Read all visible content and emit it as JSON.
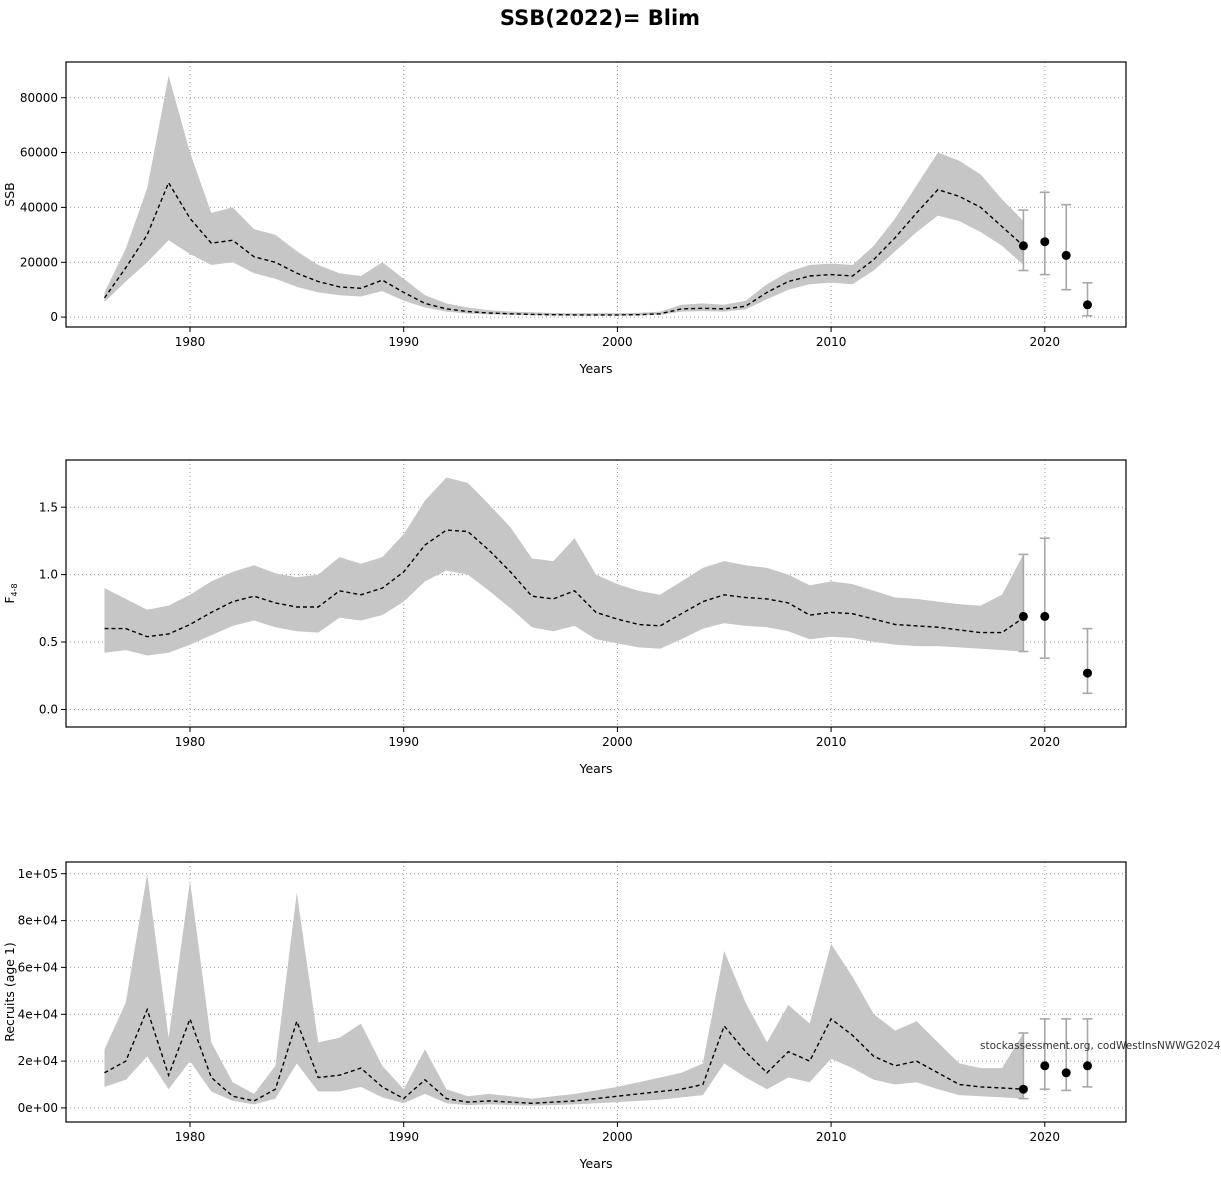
{
  "title": "SSB(2022)= Blim",
  "watermark": "stockassessment.org, codWestInsNWWG2024",
  "colors": {
    "band": "#c6c6c6",
    "line": "#000000",
    "grid": "#9a9a9a",
    "errorbar": "#a8a8a8",
    "point": "#000000"
  },
  "chart_data": [
    {
      "type": "line",
      "name": "ssb",
      "ylabel": "SSB",
      "xlabel": "Years",
      "xlim": [
        1974.2,
        2023.8
      ],
      "ylim": [
        -3600,
        93000
      ],
      "xticks": [
        1980,
        1990,
        2000,
        2010,
        2020
      ],
      "yticks": [
        0,
        20000,
        40000,
        60000,
        80000
      ],
      "ytick_labels": [
        "0",
        "20000",
        "40000",
        "60000",
        "80000"
      ],
      "x": [
        1976,
        1977,
        1978,
        1979,
        1980,
        1981,
        1982,
        1983,
        1984,
        1985,
        1986,
        1987,
        1988,
        1989,
        1990,
        1991,
        1992,
        1993,
        1994,
        1995,
        1996,
        1997,
        1998,
        1999,
        2000,
        2001,
        2002,
        2003,
        2004,
        2005,
        2006,
        2007,
        2008,
        2009,
        2010,
        2011,
        2012,
        2013,
        2014,
        2015,
        2016,
        2017,
        2018,
        2019
      ],
      "median": [
        7000,
        18000,
        30000,
        49000,
        36000,
        27000,
        28000,
        22000,
        20000,
        16000,
        13000,
        11000,
        10500,
        13500,
        9000,
        5000,
        3000,
        2000,
        1500,
        1200,
        1000,
        900,
        800,
        800,
        800,
        900,
        1200,
        3000,
        3200,
        3000,
        4000,
        9000,
        13000,
        15000,
        15500,
        15000,
        21000,
        29000,
        38000,
        46500,
        44000,
        40000,
        33000,
        26000
      ],
      "upper": [
        9000,
        25000,
        47000,
        88000,
        60000,
        38000,
        40000,
        32000,
        30000,
        24000,
        19000,
        16000,
        15000,
        20000,
        14000,
        8000,
        5000,
        3500,
        2500,
        2000,
        1800,
        1500,
        1400,
        1400,
        1400,
        1600,
        2000,
        4500,
        5000,
        4500,
        6000,
        12000,
        16500,
        19000,
        19500,
        19000,
        26000,
        36000,
        48000,
        60000,
        57000,
        52000,
        43000,
        35000
      ],
      "lower": [
        5500,
        13000,
        20000,
        28000,
        23000,
        19000,
        20000,
        16000,
        14000,
        11000,
        9000,
        8000,
        7500,
        9500,
        6000,
        3500,
        2000,
        1300,
        1000,
        800,
        700,
        600,
        550,
        550,
        550,
        600,
        800,
        2000,
        2200,
        2000,
        2800,
        6500,
        10000,
        12000,
        12500,
        12000,
        17000,
        24000,
        31000,
        37000,
        35000,
        31000,
        26000,
        19000
      ],
      "points": [
        {
          "x": 2019,
          "y": 26000,
          "lo": 17000,
          "hi": 39000
        },
        {
          "x": 2020,
          "y": 27500,
          "lo": 15500,
          "hi": 45500
        },
        {
          "x": 2021,
          "y": 22500,
          "lo": 10000,
          "hi": 41000
        },
        {
          "x": 2022,
          "y": 4500,
          "lo": 500,
          "hi": 12500
        }
      ]
    },
    {
      "type": "line",
      "name": "fishing-mortality",
      "ylabel": "F",
      "ylabel_sub": "4-8",
      "xlabel": "Years",
      "xlim": [
        1974.2,
        2023.8
      ],
      "ylim": [
        -0.13,
        1.85
      ],
      "xticks": [
        1980,
        1990,
        2000,
        2010,
        2020
      ],
      "yticks": [
        0.0,
        0.5,
        1.0,
        1.5
      ],
      "ytick_labels": [
        "0.0",
        "0.5",
        "1.0",
        "1.5"
      ],
      "x": [
        1976,
        1977,
        1978,
        1979,
        1980,
        1981,
        1982,
        1983,
        1984,
        1985,
        1986,
        1987,
        1988,
        1989,
        1990,
        1991,
        1992,
        1993,
        1994,
        1995,
        1996,
        1997,
        1998,
        1999,
        2000,
        2001,
        2002,
        2003,
        2004,
        2005,
        2006,
        2007,
        2008,
        2009,
        2010,
        2011,
        2012,
        2013,
        2014,
        2015,
        2016,
        2017,
        2018,
        2019
      ],
      "median": [
        0.6,
        0.6,
        0.54,
        0.56,
        0.63,
        0.72,
        0.8,
        0.84,
        0.79,
        0.76,
        0.76,
        0.88,
        0.85,
        0.9,
        1.02,
        1.22,
        1.33,
        1.32,
        1.18,
        1.02,
        0.84,
        0.82,
        0.88,
        0.72,
        0.67,
        0.63,
        0.62,
        0.71,
        0.8,
        0.85,
        0.83,
        0.82,
        0.79,
        0.7,
        0.72,
        0.71,
        0.67,
        0.63,
        0.62,
        0.61,
        0.59,
        0.57,
        0.57,
        0.68
      ],
      "upper": [
        0.9,
        0.82,
        0.74,
        0.77,
        0.85,
        0.95,
        1.02,
        1.07,
        1.01,
        0.98,
        1.0,
        1.13,
        1.08,
        1.13,
        1.3,
        1.55,
        1.72,
        1.68,
        1.52,
        1.35,
        1.12,
        1.1,
        1.27,
        1.0,
        0.93,
        0.88,
        0.85,
        0.95,
        1.05,
        1.1,
        1.07,
        1.05,
        1.0,
        0.92,
        0.95,
        0.93,
        0.88,
        0.83,
        0.82,
        0.8,
        0.78,
        0.77,
        0.85,
        1.15
      ],
      "lower": [
        0.42,
        0.44,
        0.4,
        0.42,
        0.48,
        0.55,
        0.62,
        0.66,
        0.61,
        0.58,
        0.57,
        0.68,
        0.66,
        0.7,
        0.8,
        0.95,
        1.03,
        1.0,
        0.88,
        0.75,
        0.61,
        0.58,
        0.62,
        0.52,
        0.49,
        0.46,
        0.45,
        0.52,
        0.6,
        0.64,
        0.62,
        0.61,
        0.58,
        0.52,
        0.54,
        0.53,
        0.5,
        0.48,
        0.47,
        0.47,
        0.46,
        0.45,
        0.44,
        0.43
      ],
      "points": [
        {
          "x": 2019,
          "y": 0.69,
          "lo": 0.43,
          "hi": 1.15
        },
        {
          "x": 2020,
          "y": 0.69,
          "lo": 0.38,
          "hi": 1.27
        },
        {
          "x": 2022,
          "y": 0.27,
          "lo": 0.12,
          "hi": 0.6
        }
      ]
    },
    {
      "type": "line",
      "name": "recruits",
      "ylabel": "Recruits (age 1)",
      "xlabel": "Years",
      "xlim": [
        1974.2,
        2023.8
      ],
      "ylim": [
        -6000,
        105000
      ],
      "xticks": [
        1980,
        1990,
        2000,
        2010,
        2020
      ],
      "yticks": [
        0,
        20000,
        40000,
        60000,
        80000,
        100000
      ],
      "ytick_labels": [
        "0e+00",
        "2e+04",
        "4e+04",
        "6e+04",
        "8e+04",
        "1e+05"
      ],
      "x": [
        1976,
        1977,
        1978,
        1979,
        1980,
        1981,
        1982,
        1983,
        1984,
        1985,
        1986,
        1987,
        1988,
        1989,
        1990,
        1991,
        1992,
        1993,
        1994,
        1995,
        1996,
        1997,
        1998,
        1999,
        2000,
        2001,
        2002,
        2003,
        2004,
        2005,
        2006,
        2007,
        2008,
        2009,
        2010,
        2011,
        2012,
        2013,
        2014,
        2015,
        2016,
        2017,
        2018,
        2019
      ],
      "median": [
        15000,
        20000,
        42000,
        14000,
        38000,
        13000,
        5000,
        3000,
        8000,
        37000,
        13000,
        14000,
        17000,
        9000,
        4000,
        12000,
        4000,
        2500,
        3000,
        2500,
        2000,
        2500,
        3000,
        4000,
        5000,
        6000,
        7000,
        8000,
        10000,
        35000,
        24000,
        15000,
        24000,
        20000,
        38000,
        31000,
        22000,
        18000,
        20000,
        15000,
        10000,
        9000,
        8500,
        8000
      ],
      "upper": [
        25000,
        45000,
        100000,
        30000,
        97000,
        28000,
        11000,
        6000,
        18000,
        92000,
        28000,
        30000,
        36000,
        18000,
        8000,
        25000,
        8000,
        5000,
        6000,
        5000,
        4000,
        5000,
        6000,
        7500,
        9000,
        11000,
        13000,
        15000,
        19000,
        67000,
        45000,
        28000,
        44000,
        36000,
        70000,
        56000,
        40000,
        33000,
        37000,
        28000,
        19000,
        17000,
        17000,
        32000
      ],
      "lower": [
        9000,
        12000,
        22000,
        8000,
        20000,
        7000,
        3000,
        1500,
        4000,
        19000,
        7000,
        7000,
        9000,
        4500,
        2000,
        6000,
        2000,
        1200,
        1500,
        1200,
        1000,
        1200,
        1500,
        2000,
        2500,
        3000,
        3500,
        4500,
        5500,
        19000,
        13000,
        8000,
        13000,
        11000,
        21000,
        17000,
        12000,
        10000,
        11000,
        8000,
        5500,
        5000,
        4500,
        4000
      ],
      "points": [
        {
          "x": 2019,
          "y": 8000,
          "lo": 4000,
          "hi": 32000
        },
        {
          "x": 2020,
          "y": 18000,
          "lo": 8000,
          "hi": 38000
        },
        {
          "x": 2021,
          "y": 15000,
          "lo": 7500,
          "hi": 38000
        },
        {
          "x": 2022,
          "y": 18000,
          "lo": 9000,
          "hi": 38000
        }
      ]
    }
  ]
}
